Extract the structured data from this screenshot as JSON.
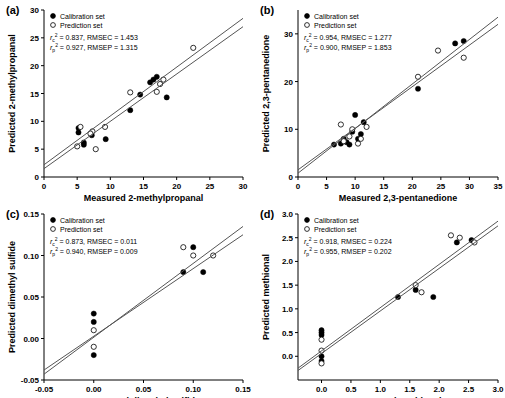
{
  "chart_data": [
    {
      "type": "scatter",
      "panel": "(a)",
      "x_label": "Measured 2-methylpropanal",
      "y_label": "Predicted 2-methylpropanal",
      "xlim": [
        0,
        30
      ],
      "xticks": [
        0,
        5,
        10,
        15,
        20,
        25,
        30
      ],
      "ylim": [
        0,
        30
      ],
      "yticks": [
        0,
        5,
        10,
        15,
        20,
        25,
        30
      ],
      "legend": "upper left",
      "series": [
        {
          "name": "Calibration set",
          "marker": "filled",
          "color": "#000000",
          "x": [
            5.2,
            5.2,
            6,
            6,
            7.2,
            9.3,
            13,
            14.5,
            16,
            16.5,
            17,
            18.5
          ],
          "values": [
            8.8,
            8,
            6.2,
            5.8,
            7.5,
            6.8,
            12,
            14.8,
            17,
            17.5,
            18,
            14.3
          ]
        },
        {
          "name": "Prediction set",
          "marker": "open",
          "color": "#000000",
          "x": [
            5,
            5.5,
            7.3,
            7,
            7.8,
            9.2,
            13,
            17,
            17.5,
            18,
            22.5
          ],
          "values": [
            5.5,
            9,
            8.2,
            7.8,
            5,
            9,
            15.2,
            15.3,
            16.7,
            17.5,
            23.2
          ]
        },
        {
          "type": "line",
          "color": "#555555",
          "x": [
            0,
            30
          ],
          "values": [
            1.5,
            27
          ]
        },
        {
          "type": "line",
          "color": "#555555",
          "x": [
            0,
            30
          ],
          "values": [
            2.2,
            28.5
          ]
        }
      ],
      "annotations": [
        {
          "symbol": "r",
          "sub": "c",
          "sup": "2",
          "text": " = 0.837, RMSEC = 1.453"
        },
        {
          "symbol": "r",
          "sub": "p",
          "sup": "2",
          "text": " = 0.927, RMSEP = 1.315"
        }
      ]
    },
    {
      "type": "scatter",
      "panel": "(b)",
      "x_label": "Measured 2,3-pentanedione",
      "y_label": "Predicted 2,3-pentanedione",
      "xlim": [
        0,
        35
      ],
      "xticks": [
        0,
        5,
        10,
        15,
        20,
        25,
        30,
        35
      ],
      "ylim": [
        0,
        35
      ],
      "yticks": [
        0,
        10,
        20,
        30
      ],
      "legend": "upper left",
      "series": [
        {
          "name": "Calibration set",
          "marker": "filled",
          "color": "#000000",
          "x": [
            6.3,
            7.5,
            8,
            8.5,
            9,
            9.5,
            10,
            10.5,
            11,
            11.5,
            21,
            27.5,
            29
          ],
          "values": [
            6.8,
            7,
            8,
            7.3,
            6.8,
            9.5,
            13,
            8,
            9,
            11.5,
            18.5,
            28,
            28.5
          ]
        },
        {
          "name": "Prediction set",
          "marker": "open",
          "color": "#000000",
          "x": [
            7.5,
            8,
            9,
            9.5,
            10.5,
            11,
            12,
            21,
            24.5,
            29
          ],
          "values": [
            11,
            7.5,
            8.5,
            10,
            7,
            8,
            10.5,
            21,
            26.5,
            25
          ]
        },
        {
          "type": "line",
          "color": "#555555",
          "x": [
            0,
            35
          ],
          "values": [
            0.8,
            33.5
          ]
        },
        {
          "type": "line",
          "color": "#555555",
          "x": [
            0,
            35
          ],
          "values": [
            1.5,
            32
          ]
        }
      ],
      "annotations": [
        {
          "symbol": "r",
          "sub": "c",
          "sup": "2",
          "text": " = 0.954, RMSEC = 1.277"
        },
        {
          "symbol": "r",
          "sub": "p",
          "sup": "2",
          "text": " = 0.900, RMSEP = 1.853"
        }
      ]
    },
    {
      "type": "scatter",
      "panel": "(c)",
      "x_label": "Measured dimethyl sulfide",
      "y_label": "Predicted dimethyl sulfide",
      "xlim": [
        -0.05,
        0.15
      ],
      "xticks": [
        -0.05,
        {
          "value": 0,
          "label": "0.00"
        },
        0.05,
        {
          "value": 0.1,
          "label": "0.10"
        },
        0.15
      ],
      "ylim": [
        -0.05,
        0.15
      ],
      "yticks": [
        -0.05,
        {
          "value": 0,
          "label": "0.00"
        },
        0.05,
        {
          "value": 0.1,
          "label": "0.10"
        },
        0.15
      ],
      "legend": "upper left",
      "series": [
        {
          "name": "Calibration set",
          "marker": "filled",
          "color": "#000000",
          "x": [
            0,
            0,
            0,
            0.09,
            0.1,
            0.11
          ],
          "values": [
            0.03,
            0.02,
            -0.02,
            0.08,
            0.11,
            0.08
          ]
        },
        {
          "name": "Prediction set",
          "marker": "open",
          "color": "#000000",
          "x": [
            0,
            0,
            0.09,
            0.12,
            0.1
          ],
          "values": [
            0.01,
            -0.01,
            0.11,
            0.1,
            0.1
          ]
        },
        {
          "type": "line",
          "color": "#555555",
          "x": [
            -0.05,
            0.15
          ],
          "values": [
            -0.043,
            0.135
          ]
        },
        {
          "type": "line",
          "color": "#555555",
          "x": [
            -0.05,
            0.15
          ],
          "values": [
            -0.038,
            0.125
          ]
        }
      ],
      "annotations": [
        {
          "symbol": "r",
          "sub": "c",
          "sup": "2",
          "text": " = 0.873, RMSEC = 0.011"
        },
        {
          "symbol": "r",
          "sub": "p",
          "sup": "2",
          "text": " = 0.940, RMSEP = 0.009"
        }
      ]
    },
    {
      "type": "scatter",
      "panel": "(d)",
      "x_label": "Measured methional",
      "y_label": "Predicted methional",
      "xlim": [
        -0.4,
        3
      ],
      "xticks": [
        {
          "value": 0,
          "label": "0.0"
        },
        0.5,
        {
          "value": 1,
          "label": "1.0"
        },
        1.5,
        {
          "value": 2,
          "label": "2.0"
        },
        2.5,
        {
          "value": 3,
          "label": "3.0"
        }
      ],
      "ylim": [
        -0.5,
        3
      ],
      "yticks": [
        {
          "value": 0,
          "label": "0.0"
        },
        0.5,
        {
          "value": 1,
          "label": "1.0"
        },
        1.5,
        {
          "value": 2,
          "label": "2.0"
        },
        2.5,
        {
          "value": 3,
          "label": "3.0"
        }
      ],
      "legend": "upper left",
      "series": [
        {
          "name": "Calibration set",
          "marker": "filled",
          "color": "#000000",
          "x": [
            0,
            0,
            0,
            0,
            0,
            1.3,
            1.6,
            1.9,
            2.3,
            2.55
          ],
          "values": [
            0.5,
            0.55,
            0.45,
            0,
            -0.1,
            1.25,
            1.4,
            1.25,
            2.4,
            2.45
          ]
        },
        {
          "name": "Prediction set",
          "marker": "open",
          "color": "#000000",
          "x": [
            0,
            0,
            0,
            1.6,
            1.7,
            2.2,
            2.35,
            2.6
          ],
          "values": [
            0.35,
            0.12,
            -0.15,
            1.5,
            1.35,
            2.55,
            2.5,
            2.4
          ]
        },
        {
          "type": "line",
          "color": "#555555",
          "x": [
            -0.4,
            3
          ],
          "values": [
            -0.3,
            2.75
          ]
        },
        {
          "type": "line",
          "color": "#555555",
          "x": [
            -0.4,
            3
          ],
          "values": [
            -0.25,
            2.85
          ]
        }
      ],
      "annotations": [
        {
          "symbol": "r",
          "sub": "c",
          "sup": "2",
          "text": " = 0.918, RMSEC = 0.224"
        },
        {
          "symbol": "r",
          "sub": "p",
          "sup": "2",
          "text": " = 0.955, RMSEP = 0.202"
        }
      ]
    }
  ]
}
